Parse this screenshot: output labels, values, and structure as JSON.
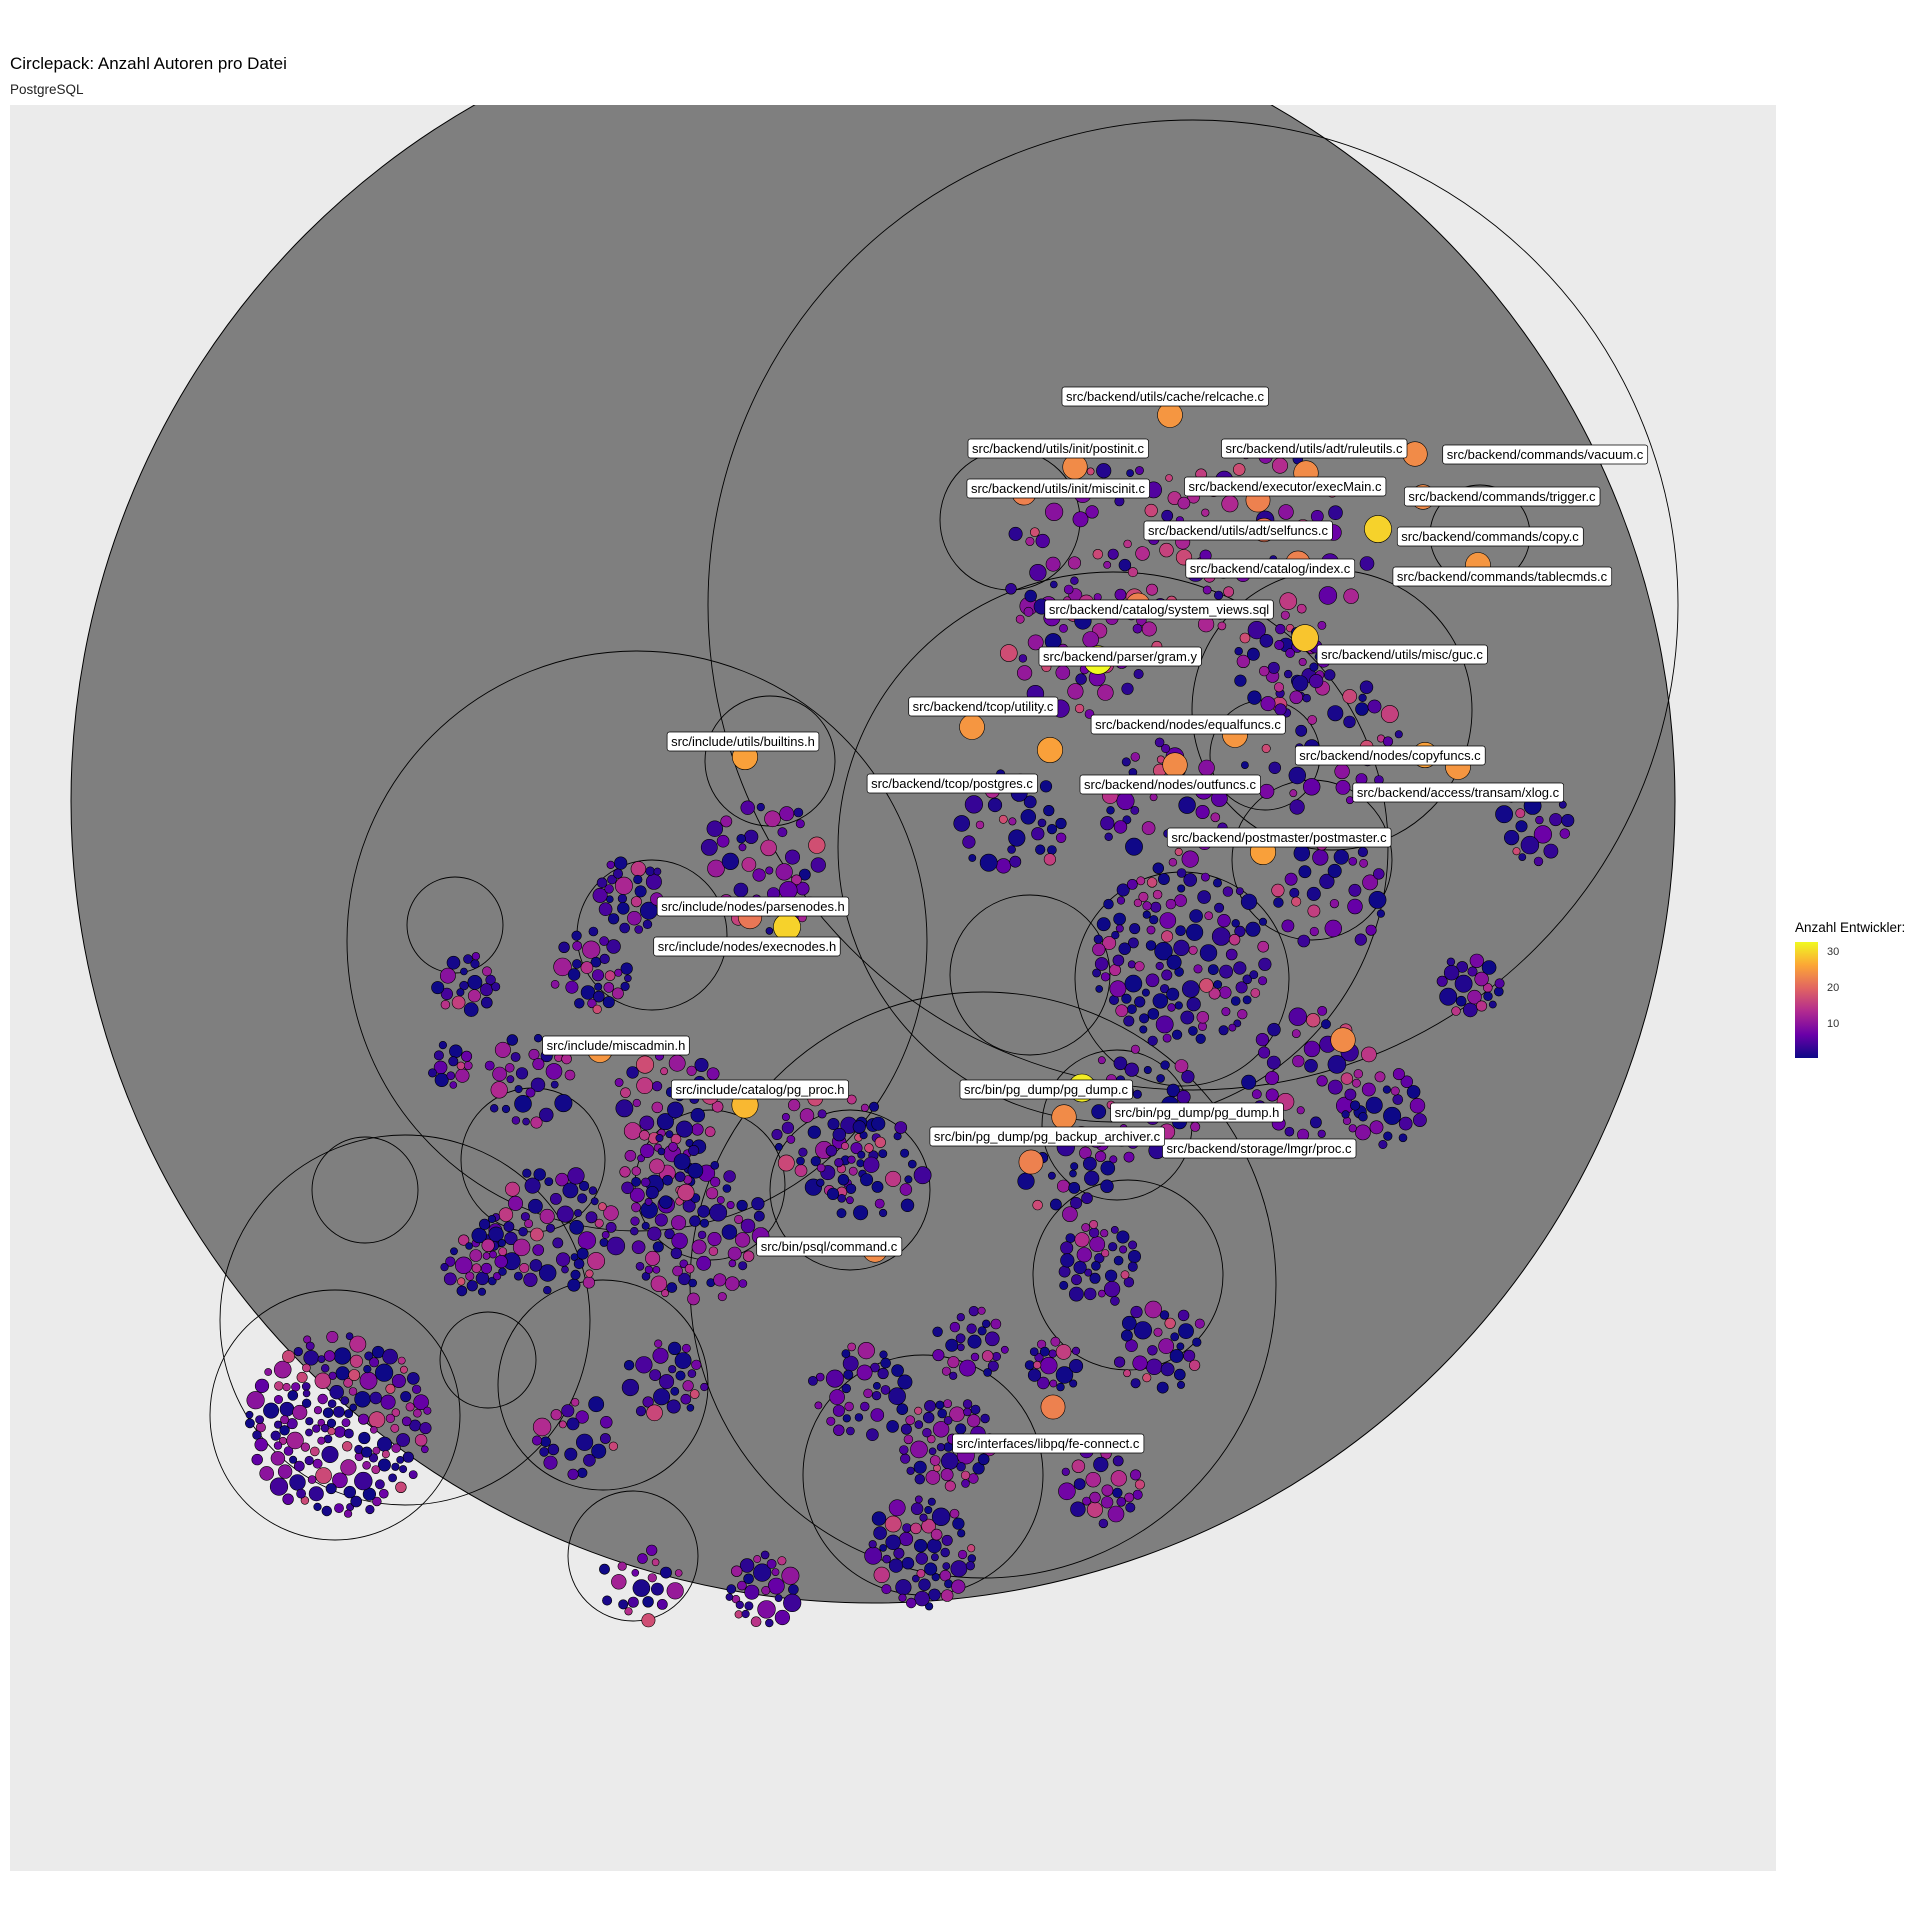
{
  "chart_data": {
    "type": "circlepack",
    "title": "Circlepack: Anzahl Autoren pro Datei",
    "subtitle": "PostgreSQL",
    "legend": {
      "title": "Anzahl Entwickler:",
      "breaks": [
        10,
        20,
        30
      ],
      "range": [
        1,
        33
      ],
      "palette": [
        "#0d0887",
        "#6a00a8",
        "#b12a90",
        "#e16462",
        "#fca636",
        "#f0f921"
      ],
      "placement": "right"
    },
    "background_color": "#ebebeb",
    "root_fill": "#7f7f7f",
    "labeled_files": [
      {
        "name": "src/backend/utils/cache/relcache.c",
        "authors": 25
      },
      {
        "name": "src/backend/utils/init/postinit.c",
        "authors": 24
      },
      {
        "name": "src/backend/utils/adt/ruleutils.c",
        "authors": 24
      },
      {
        "name": "src/backend/commands/vacuum.c",
        "authors": 24
      },
      {
        "name": "src/backend/utils/init/miscinit.c",
        "authors": 23
      },
      {
        "name": "src/backend/executor/execMain.c",
        "authors": 23
      },
      {
        "name": "src/backend/commands/trigger.c",
        "authors": 24
      },
      {
        "name": "src/backend/utils/adt/selfuncs.c",
        "authors": 22
      },
      {
        "name": "src/backend/commands/copy.c",
        "authors": 30
      },
      {
        "name": "src/backend/catalog/index.c",
        "authors": 23
      },
      {
        "name": "src/backend/commands/tablecmds.c",
        "authors": 25
      },
      {
        "name": "src/backend/catalog/system_views.sql",
        "authors": 23
      },
      {
        "name": "src/backend/utils/misc/guc.c",
        "authors": 29
      },
      {
        "name": "src/backend/parser/gram.y",
        "authors": 33
      },
      {
        "name": "src/backend/tcop/utility.c",
        "authors": 25
      },
      {
        "name": "src/backend/nodes/equalfuncs.c",
        "authors": 25
      },
      {
        "name": "src/backend/nodes/copyfuncs.c",
        "authors": 26
      },
      {
        "name": "src/include/utils/builtins.h",
        "authors": 26
      },
      {
        "name": "src/backend/tcop/postgres.c",
        "authors": 26
      },
      {
        "name": "src/backend/nodes/outfuncs.c",
        "authors": 24
      },
      {
        "name": "src/backend/access/transam/xlog.c",
        "authors": 25
      },
      {
        "name": "src/backend/postmaster/postmaster.c",
        "authors": 26
      },
      {
        "name": "src/include/nodes/parsenodes.h",
        "authors": 30
      },
      {
        "name": "src/include/nodes/execnodes.h",
        "authors": 22
      },
      {
        "name": "src/include/miscadmin.h",
        "authors": 25
      },
      {
        "name": "src/include/catalog/pg_proc.h",
        "authors": 28
      },
      {
        "name": "src/bin/pg_dump/pg_dump.c",
        "authors": 32
      },
      {
        "name": "src/bin/pg_dump/pg_dump.h",
        "authors": 24
      },
      {
        "name": "src/backend/storage/lmgr/proc.c",
        "authors": 24
      },
      {
        "name": "src/bin/pg_dump/pg_backup_archiver.c",
        "authors": 23
      },
      {
        "name": "src/bin/psql/command.c",
        "authors": 24
      },
      {
        "name": "src/interfaces/libpq/fe-connect.c",
        "authors": 23
      }
    ]
  }
}
